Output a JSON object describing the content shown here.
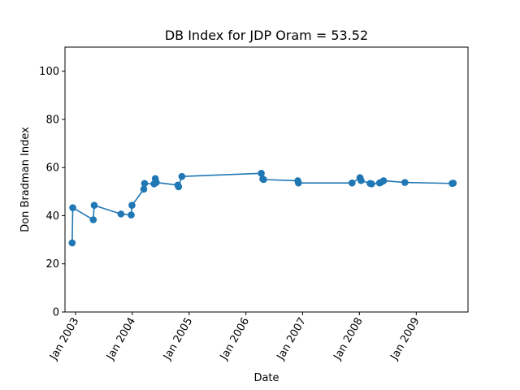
{
  "chart_data": {
    "type": "line",
    "title": "DB Index for JDP Oram = 53.52",
    "xlabel": "Date",
    "ylabel": "Don Bradman Index",
    "ylim": [
      0,
      110
    ],
    "yticks": [
      0,
      20,
      40,
      60,
      80,
      100
    ],
    "xlim": [
      "2002-10-25",
      "2009-11-30"
    ],
    "xticks": [
      {
        "date": "2003-01-01",
        "label": "Jan 2003"
      },
      {
        "date": "2004-01-01",
        "label": "Jan 2004"
      },
      {
        "date": "2005-01-01",
        "label": "Jan 2005"
      },
      {
        "date": "2006-01-01",
        "label": "Jan 2006"
      },
      {
        "date": "2007-01-01",
        "label": "Jan 2007"
      },
      {
        "date": "2008-01-01",
        "label": "Jan 2008"
      },
      {
        "date": "2009-01-01",
        "label": "Jan 2009"
      }
    ],
    "grid": false,
    "series": [
      {
        "color": "#1f77b4",
        "marker": "circle",
        "points": [
          {
            "x": "2002-12-10",
            "y": 28.7
          },
          {
            "x": "2002-12-14",
            "y": 43.3
          },
          {
            "x": "2003-04-25",
            "y": 38.3
          },
          {
            "x": "2003-05-01",
            "y": 44.3
          },
          {
            "x": "2003-10-20",
            "y": 40.7
          },
          {
            "x": "2003-12-25",
            "y": 40.3
          },
          {
            "x": "2003-12-30",
            "y": 44.3
          },
          {
            "x": "2004-03-15",
            "y": 51.0
          },
          {
            "x": "2004-03-20",
            "y": 53.4
          },
          {
            "x": "2004-05-20",
            "y": 53.2
          },
          {
            "x": "2004-05-28",
            "y": 55.4
          },
          {
            "x": "2004-06-03",
            "y": 53.8
          },
          {
            "x": "2004-10-20",
            "y": 52.7
          },
          {
            "x": "2004-10-25",
            "y": 52.0
          },
          {
            "x": "2004-11-15",
            "y": 56.3
          },
          {
            "x": "2006-04-10",
            "y": 57.6
          },
          {
            "x": "2006-04-20",
            "y": 55.2
          },
          {
            "x": "2006-04-25",
            "y": 55.0
          },
          {
            "x": "2006-12-01",
            "y": 54.5
          },
          {
            "x": "2006-12-05",
            "y": 53.6
          },
          {
            "x": "2007-11-15",
            "y": 53.6
          },
          {
            "x": "2008-01-05",
            "y": 55.8
          },
          {
            "x": "2008-01-12",
            "y": 54.6
          },
          {
            "x": "2008-03-10",
            "y": 53.4
          },
          {
            "x": "2008-03-20",
            "y": 53.2
          },
          {
            "x": "2008-05-10",
            "y": 53.6
          },
          {
            "x": "2008-05-20",
            "y": 53.9
          },
          {
            "x": "2008-06-05",
            "y": 54.5
          },
          {
            "x": "2008-10-20",
            "y": 53.8
          },
          {
            "x": "2009-08-20",
            "y": 53.4
          },
          {
            "x": "2009-08-27",
            "y": 53.5
          }
        ]
      }
    ]
  }
}
